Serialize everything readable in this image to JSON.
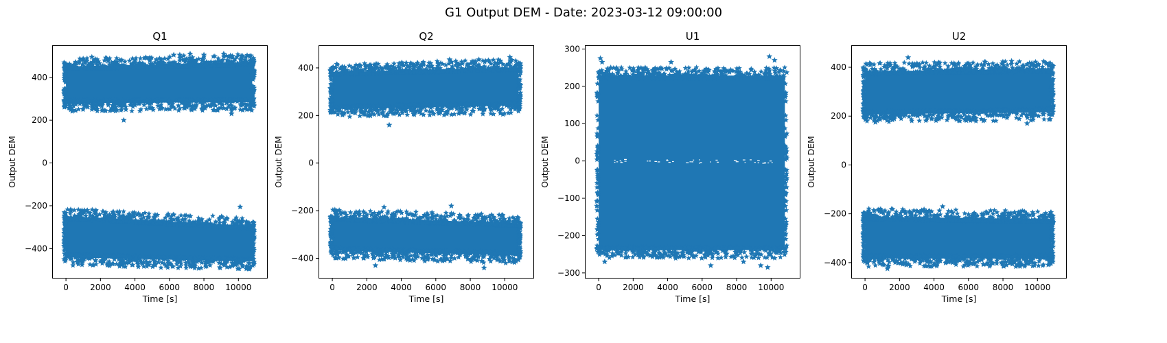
{
  "figure": {
    "title": "G1 Output DEM - Date: 2023-03-12 09:00:00"
  },
  "style": {
    "marker_color": "#1f77b4",
    "axis_color": "#000000"
  },
  "chart_data": [
    {
      "type": "scatter",
      "title": "Q1",
      "xlabel": "Time [s]",
      "ylabel": "Output DEM",
      "xlim": [
        -800,
        11700
      ],
      "ylim": [
        -540,
        550
      ],
      "xticks": [
        0,
        2000,
        4000,
        6000,
        8000,
        10000
      ],
      "yticks": [
        -400,
        -200,
        0,
        200,
        400
      ],
      "grid": false,
      "series": [
        {
          "x_range": [
            0,
            10800
          ],
          "bands": [
            {
              "lower": [
                260,
                265
              ],
              "upper": [
                470,
                490
              ]
            },
            {
              "lower": [
                -460,
                -480
              ],
              "upper": [
                -230,
                -275
              ]
            }
          ],
          "outliers": [
            [
              1500,
              495
            ],
            [
              3350,
              200
            ],
            [
              6250,
              505
            ],
            [
              6600,
              505
            ],
            [
              7200,
              510
            ],
            [
              8000,
              505
            ],
            [
              9150,
              510
            ],
            [
              9600,
              230
            ],
            [
              10100,
              -205
            ]
          ]
        }
      ]
    },
    {
      "type": "scatter",
      "title": "Q2",
      "xlabel": "Time [s]",
      "ylabel": "Output DEM",
      "xlim": [
        -800,
        11700
      ],
      "ylim": [
        -485,
        495
      ],
      "xticks": [
        0,
        2000,
        4000,
        6000,
        8000,
        10000
      ],
      "yticks": [
        -400,
        -200,
        0,
        200,
        400
      ],
      "grid": false,
      "series": [
        {
          "x_range": [
            0,
            10800
          ],
          "bands": [
            {
              "lower": [
                210,
                225
              ],
              "upper": [
                400,
                420
              ]
            },
            {
              "lower": [
                -385,
                -405
              ],
              "upper": [
                -210,
                -235
              ]
            }
          ],
          "outliers": [
            [
              3300,
              160
            ],
            [
              6800,
              435
            ],
            [
              8500,
              435
            ],
            [
              10300,
              445
            ],
            [
              9900,
              205
            ],
            [
              2500,
              -430
            ],
            [
              8800,
              -440
            ],
            [
              6900,
              -180
            ],
            [
              3000,
              -185
            ]
          ]
        }
      ]
    },
    {
      "type": "scatter",
      "title": "U1",
      "xlabel": "Time [s]",
      "ylabel": "Output DEM",
      "xlim": [
        -800,
        11700
      ],
      "ylim": [
        -315,
        310
      ],
      "xticks": [
        0,
        2000,
        4000,
        6000,
        8000,
        10000
      ],
      "yticks": [
        -300,
        -200,
        -100,
        0,
        100,
        200,
        300
      ],
      "grid": false,
      "series": [
        {
          "x_range": [
            0,
            10800
          ],
          "bands": [
            {
              "lower": [
                -250,
                -250
              ],
              "upper": [
                240,
                240
              ]
            }
          ],
          "outliers": [
            [
              100,
              275
            ],
            [
              200,
              265
            ],
            [
              700,
              250
            ],
            [
              4200,
              265
            ],
            [
              9900,
              280
            ],
            [
              10200,
              270
            ],
            [
              350,
              -270
            ],
            [
              6500,
              -280
            ],
            [
              9400,
              -280
            ],
            [
              9800,
              -285
            ],
            [
              8400,
              -270
            ]
          ]
        }
      ]
    },
    {
      "type": "scatter",
      "title": "U2",
      "xlabel": "Time [s]",
      "ylabel": "Output DEM",
      "xlim": [
        -800,
        11700
      ],
      "ylim": [
        -465,
        490
      ],
      "xticks": [
        0,
        2000,
        4000,
        6000,
        8000,
        10000
      ],
      "yticks": [
        -400,
        -200,
        0,
        200,
        400
      ],
      "grid": false,
      "series": [
        {
          "x_range": [
            0,
            10800
          ],
          "bands": [
            {
              "lower": [
                190,
                200
              ],
              "upper": [
                400,
                410
              ]
            },
            {
              "lower": [
                -400,
                -400
              ],
              "upper": [
                -195,
                -205
              ]
            }
          ],
          "outliers": [
            [
              2500,
              440
            ],
            [
              1300,
              -425
            ],
            [
              9400,
              170
            ],
            [
              4500,
              -170
            ],
            [
              600,
              175
            ],
            [
              8500,
              425
            ]
          ]
        }
      ]
    }
  ]
}
